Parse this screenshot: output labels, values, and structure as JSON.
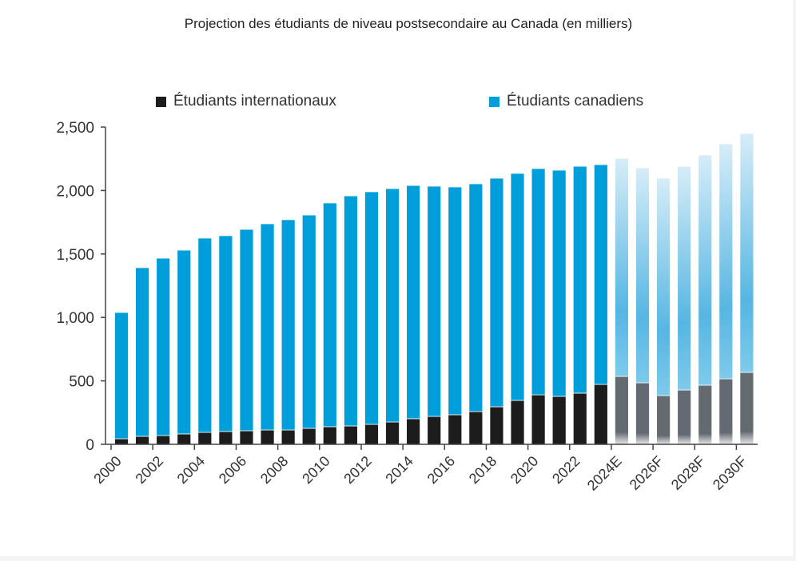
{
  "chart_data": {
    "type": "bar",
    "stacked": true,
    "title": "Projection des étudiants de niveau postsecondaire au Canada (en milliers)",
    "xlabel": "",
    "ylabel": "",
    "ylim": [
      0,
      2500
    ],
    "yticks": [
      "0",
      "500",
      "1,000",
      "1,500",
      "2,000",
      "2,500"
    ],
    "grid": false,
    "legend_position": "top",
    "categories": [
      "2000",
      "2001",
      "2002",
      "2003",
      "2004",
      "2005",
      "2006",
      "2007",
      "2008",
      "2009",
      "2010",
      "2011",
      "2012",
      "2013",
      "2014",
      "2015",
      "2016",
      "2017",
      "2018",
      "2019",
      "2020",
      "2021",
      "2022",
      "2023",
      "2024E",
      "2025F",
      "2026F",
      "2027F",
      "2028F",
      "2029F",
      "2030F"
    ],
    "xtick_labels": [
      "2000",
      "2002",
      "2004",
      "2006",
      "2008",
      "2010",
      "2012",
      "2014",
      "2016",
      "2018",
      "2020",
      "2022",
      "2024E",
      "2026F",
      "2028F",
      "2030F"
    ],
    "series": [
      {
        "name": "Étudiants internationaux",
        "color": "#1c1c1c",
        "projected_color": "#636a72",
        "values": [
          44,
          63,
          69,
          82,
          94,
          101,
          107,
          113,
          113,
          126,
          139,
          145,
          157,
          176,
          202,
          220,
          233,
          258,
          296,
          346,
          390,
          378,
          403,
          472,
          535,
          485,
          384,
          428,
          466,
          516,
          567
        ]
      },
      {
        "name": "Étudiants canadiens",
        "color": "#009fdb",
        "projected_color": "#5ab8e4",
        "values": [
          995,
          1329,
          1398,
          1448,
          1531,
          1543,
          1587,
          1625,
          1657,
          1681,
          1763,
          1813,
          1833,
          1839,
          1838,
          1814,
          1795,
          1795,
          1801,
          1789,
          1783,
          1782,
          1788,
          1732,
          1719,
          1694,
          1713,
          1763,
          1814,
          1852,
          1883
        ]
      }
    ],
    "projected_from": "2024E"
  }
}
